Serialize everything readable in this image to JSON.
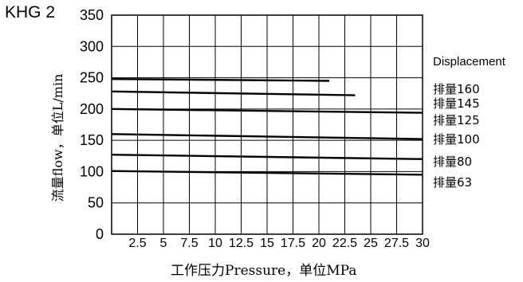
{
  "header": {
    "model": "KHG 2",
    "legend_title": "Displacement"
  },
  "chart_data": {
    "type": "line",
    "xlabel": "工作压力Pressure，单位MPa",
    "ylabel": "流量flow，单位L/min",
    "xlim": [
      0,
      30
    ],
    "ylim": [
      0,
      350
    ],
    "x_ticks": [
      "2.5",
      "5",
      "7.5",
      "10",
      "12.5",
      "15",
      "17.5",
      "20",
      "22.5",
      "25",
      "27.5",
      "30"
    ],
    "y_ticks": [
      "0",
      "50",
      "100",
      "150",
      "200",
      "250",
      "300",
      "350"
    ],
    "grid": true,
    "series": [
      {
        "name": "排量160",
        "x": [
          0,
          21
        ],
        "values": [
          248,
          245
        ]
      },
      {
        "name": "排量145",
        "x": [
          0,
          23.5
        ],
        "values": [
          228,
          222
        ]
      },
      {
        "name": "排量125",
        "x": [
          0,
          30
        ],
        "values": [
          200,
          194
        ]
      },
      {
        "name": "排量100",
        "x": [
          0,
          30
        ],
        "values": [
          160,
          152
        ]
      },
      {
        "name": "排量80",
        "x": [
          0,
          30
        ],
        "values": [
          127,
          120
        ]
      },
      {
        "name": "排量63",
        "x": [
          0,
          30
        ],
        "values": [
          101,
          95
        ]
      }
    ]
  }
}
